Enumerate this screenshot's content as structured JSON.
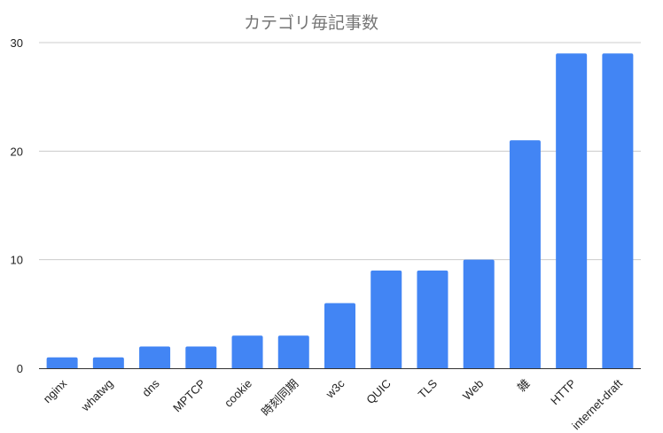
{
  "chart_data": {
    "type": "bar",
    "title": "カテゴリ毎記事数",
    "xlabel": "",
    "ylabel": "",
    "categories": [
      "nginx",
      "whatwg",
      "dns",
      "MPTCP",
      "cookie",
      "時刻同期",
      "w3c",
      "QUIC",
      "TLS",
      "Web",
      "雑",
      "HTTP",
      "internet-draft"
    ],
    "values": [
      1,
      1,
      2,
      2,
      3,
      3,
      6,
      9,
      9,
      10,
      21,
      29,
      29
    ],
    "ylim": [
      0,
      30
    ],
    "yticks": [
      0,
      10,
      20,
      30
    ],
    "grid": true,
    "legend": "none",
    "bar_color": "#4285f4",
    "grid_color": "#cccccc",
    "baseline_color": "#333333"
  }
}
